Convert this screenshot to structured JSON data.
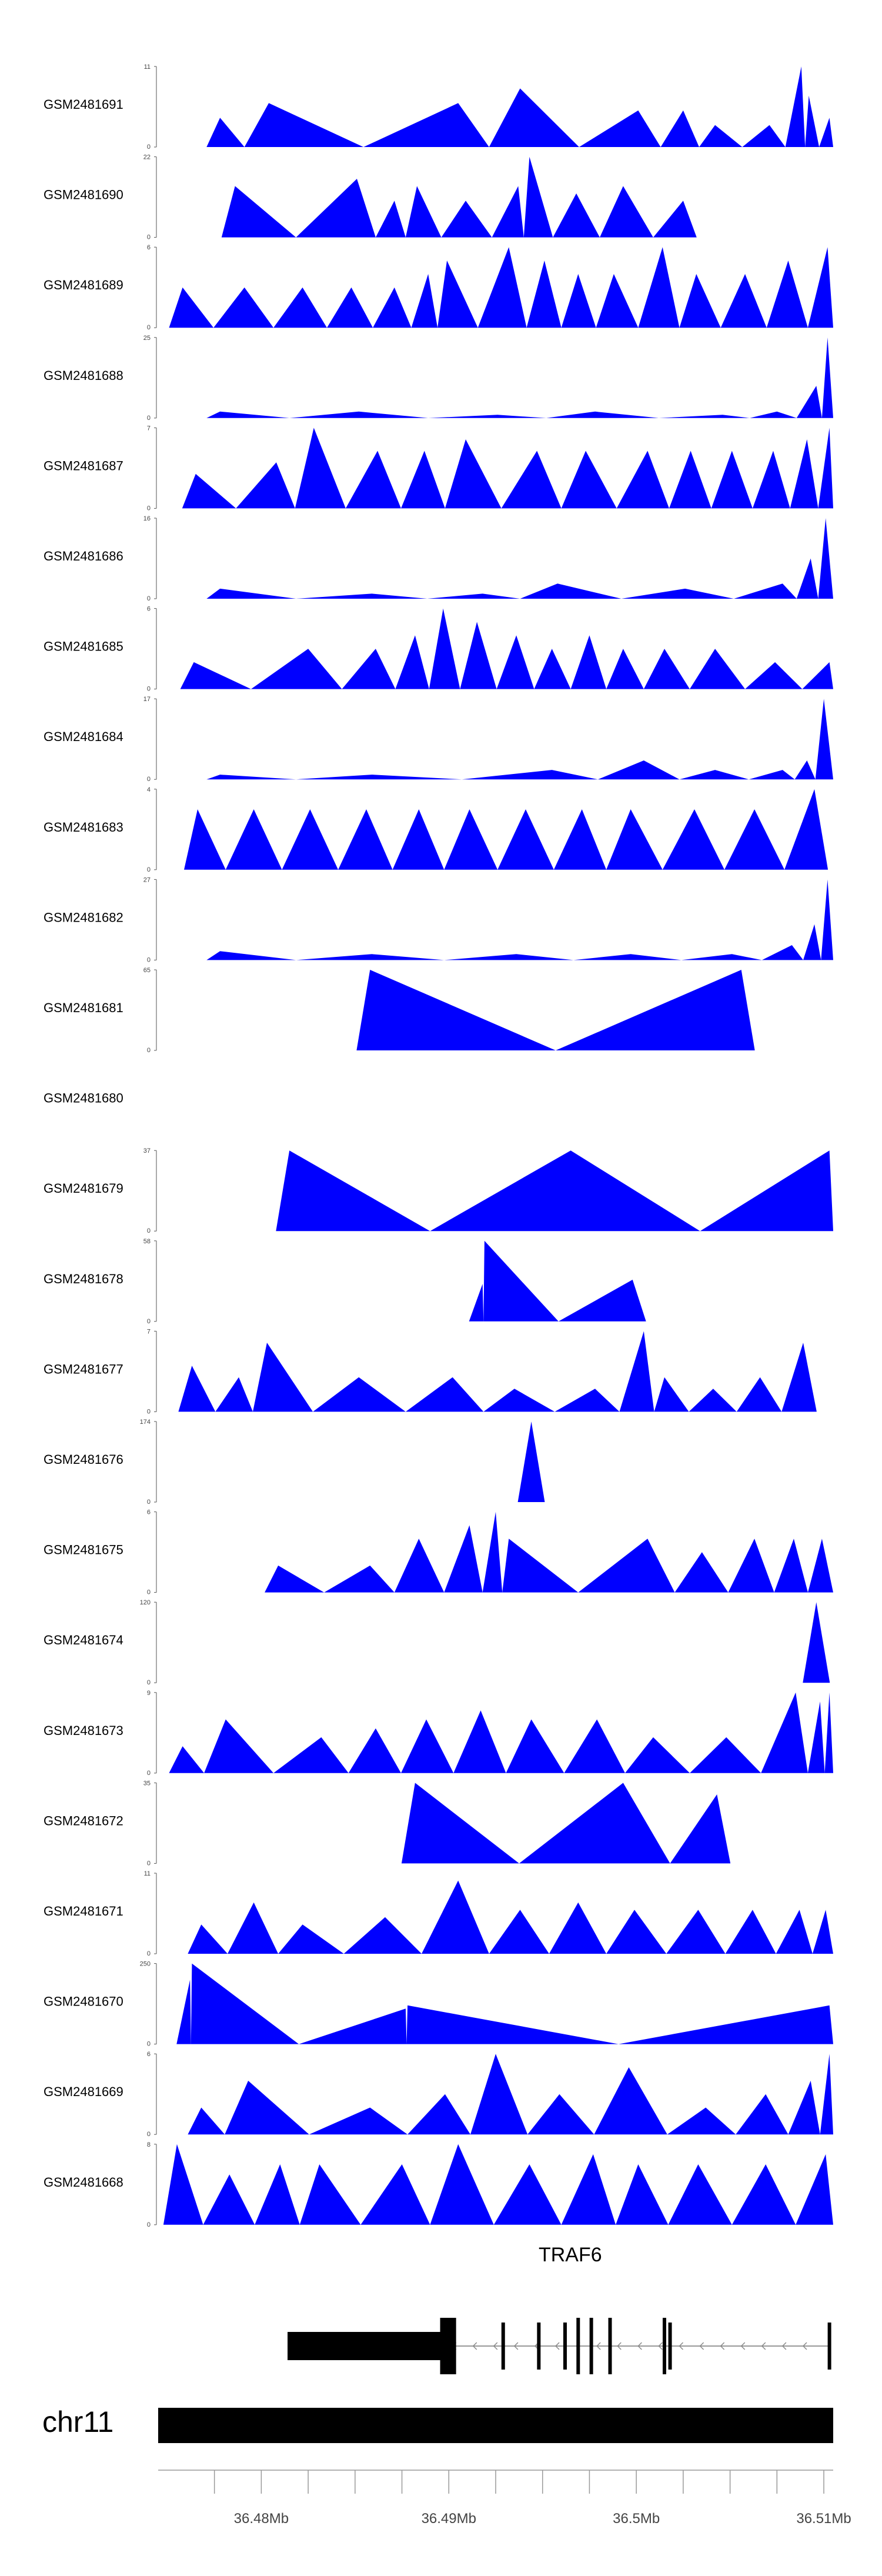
{
  "chart_data": {
    "type": "area",
    "title": "",
    "xlabel": "",
    "genome": {
      "chromosome": "chr11",
      "xlim": [
        36.4745,
        36.5105
      ],
      "ticks": [
        {
          "value": 36.48,
          "label": "36.48Mb"
        },
        {
          "value": 36.49,
          "label": "36.49Mb"
        },
        {
          "value": 36.5,
          "label": "36.5Mb"
        },
        {
          "value": 36.51,
          "label": "36.51Mb"
        }
      ]
    },
    "gene": {
      "name": "TRAF6",
      "start": 36.4814,
      "end": 36.5103,
      "thick_start": 36.4814,
      "thick_end": 36.4896,
      "exons": [
        36.4902,
        36.4929,
        36.4948,
        36.4962,
        36.4969,
        36.4976,
        36.4986,
        36.5015,
        36.5018,
        36.5103
      ]
    },
    "tracks": [
      {
        "name": "GSM2481691",
        "ymax": 11,
        "peaks": [
          [
            36.4778,
            4
          ],
          [
            36.4804,
            6
          ],
          [
            36.4905,
            6
          ],
          [
            36.4938,
            8
          ],
          [
            36.5001,
            5
          ],
          [
            36.5025,
            5
          ],
          [
            36.5042,
            3
          ],
          [
            36.5071,
            3
          ],
          [
            36.5088,
            11
          ],
          [
            36.5092,
            7
          ],
          [
            36.5103,
            4
          ]
        ]
      },
      {
        "name": "GSM2481690",
        "ymax": 22,
        "peaks": [
          [
            36.4786,
            14
          ],
          [
            36.4851,
            16
          ],
          [
            36.4871,
            10
          ],
          [
            36.4883,
            14
          ],
          [
            36.4909,
            10
          ],
          [
            36.4937,
            14
          ],
          [
            36.4943,
            22
          ],
          [
            36.4968,
            12
          ],
          [
            36.4993,
            14
          ],
          [
            36.5025,
            10
          ]
        ]
      },
      {
        "name": "GSM2481689",
        "ymax": 6,
        "peaks": [
          [
            36.4758,
            3
          ],
          [
            36.4791,
            3
          ],
          [
            36.4822,
            3
          ],
          [
            36.4848,
            3
          ],
          [
            36.4871,
            3
          ],
          [
            36.4889,
            4
          ],
          [
            36.4899,
            5
          ],
          [
            36.4932,
            6
          ],
          [
            36.4951,
            5
          ],
          [
            36.4969,
            4
          ],
          [
            36.4988,
            4
          ],
          [
            36.5014,
            6
          ],
          [
            36.5032,
            4
          ],
          [
            36.5058,
            4
          ],
          [
            36.5081,
            5
          ],
          [
            36.5102,
            6
          ]
        ]
      },
      {
        "name": "GSM2481688",
        "ymax": 25,
        "peaks": [
          [
            36.4778,
            2
          ],
          [
            36.4852,
            2
          ],
          [
            36.4926,
            1
          ],
          [
            36.4978,
            2
          ],
          [
            36.5046,
            1
          ],
          [
            36.5075,
            2
          ],
          [
            36.5096,
            10
          ],
          [
            36.5102,
            25
          ]
        ]
      },
      {
        "name": "GSM2481687",
        "ymax": 7,
        "peaks": [
          [
            36.4765,
            3
          ],
          [
            36.4808,
            4
          ],
          [
            36.4828,
            7
          ],
          [
            36.4862,
            5
          ],
          [
            36.4887,
            5
          ],
          [
            36.4909,
            6
          ],
          [
            36.4947,
            5
          ],
          [
            36.4973,
            5
          ],
          [
            36.5006,
            5
          ],
          [
            36.5029,
            5
          ],
          [
            36.5051,
            5
          ],
          [
            36.5073,
            5
          ],
          [
            36.5091,
            6
          ],
          [
            36.5103,
            7
          ]
        ]
      },
      {
        "name": "GSM2481686",
        "ymax": 16,
        "peaks": [
          [
            36.4778,
            2
          ],
          [
            36.4859,
            1
          ],
          [
            36.4918,
            1
          ],
          [
            36.4958,
            3
          ],
          [
            36.5026,
            2
          ],
          [
            36.5078,
            3
          ],
          [
            36.5093,
            8
          ],
          [
            36.5101,
            16
          ]
        ]
      },
      {
        "name": "GSM2481685",
        "ymax": 6,
        "peaks": [
          [
            36.4764,
            2
          ],
          [
            36.4825,
            3
          ],
          [
            36.4861,
            3
          ],
          [
            36.4882,
            4
          ],
          [
            36.4897,
            6
          ],
          [
            36.4915,
            5
          ],
          [
            36.4936,
            4
          ],
          [
            36.4955,
            3
          ],
          [
            36.4975,
            4
          ],
          [
            36.4993,
            3
          ],
          [
            36.5015,
            3
          ],
          [
            36.5042,
            3
          ],
          [
            36.5074,
            2
          ],
          [
            36.5103,
            2
          ]
        ]
      },
      {
        "name": "GSM2481684",
        "ymax": 17,
        "peaks": [
          [
            36.4778,
            1
          ],
          [
            36.4859,
            1
          ],
          [
            36.4955,
            2
          ],
          [
            36.5004,
            4
          ],
          [
            36.5042,
            2
          ],
          [
            36.5078,
            2
          ],
          [
            36.5091,
            4
          ],
          [
            36.51,
            17
          ]
        ]
      },
      {
        "name": "GSM2481683",
        "ymax": 4,
        "peaks": [
          [
            36.4766,
            3
          ],
          [
            36.4796,
            3
          ],
          [
            36.4826,
            3
          ],
          [
            36.4856,
            3
          ],
          [
            36.4884,
            3
          ],
          [
            36.4911,
            3
          ],
          [
            36.4941,
            3
          ],
          [
            36.4971,
            3
          ],
          [
            36.4997,
            3
          ],
          [
            36.5031,
            3
          ],
          [
            36.5063,
            3
          ],
          [
            36.5095,
            4
          ]
        ]
      },
      {
        "name": "GSM2481682",
        "ymax": 27,
        "peaks": [
          [
            36.4778,
            3
          ],
          [
            36.4859,
            2
          ],
          [
            36.4936,
            2
          ],
          [
            36.4997,
            2
          ],
          [
            36.5051,
            2
          ],
          [
            36.5083,
            5
          ],
          [
            36.5095,
            12
          ],
          [
            36.5102,
            27
          ]
        ]
      },
      {
        "name": "GSM2481681",
        "ymax": 65,
        "peaks": [
          [
            36.4858,
            65
          ],
          [
            36.5056,
            65
          ]
        ]
      },
      {
        "name": "GSM2481680",
        "ymax": null,
        "peaks": []
      },
      {
        "name": "GSM2481679",
        "ymax": 37,
        "peaks": [
          [
            36.4815,
            37
          ],
          [
            36.4965,
            37
          ],
          [
            36.5103,
            37
          ]
        ]
      },
      {
        "name": "GSM2481678",
        "ymax": 58,
        "peaks": [
          [
            36.4918,
            27
          ],
          [
            36.4919,
            58
          ],
          [
            36.4998,
            30
          ]
        ]
      },
      {
        "name": "GSM2481677",
        "ymax": 7,
        "peaks": [
          [
            36.4763,
            4
          ],
          [
            36.4788,
            3
          ],
          [
            36.4803,
            6
          ],
          [
            36.4852,
            3
          ],
          [
            36.4902,
            3
          ],
          [
            36.4935,
            2
          ],
          [
            36.4978,
            2
          ],
          [
            36.5004,
            7
          ],
          [
            36.5015,
            3
          ],
          [
            36.5041,
            2
          ],
          [
            36.5066,
            3
          ],
          [
            36.5089,
            6
          ]
        ]
      },
      {
        "name": "GSM2481676",
        "ymax": 174,
        "peaks": [
          [
            36.4944,
            174
          ]
        ]
      },
      {
        "name": "GSM2481675",
        "ymax": 6,
        "peaks": [
          [
            36.4809,
            2
          ],
          [
            36.4858,
            2
          ],
          [
            36.4884,
            4
          ],
          [
            36.4911,
            5
          ],
          [
            36.4925,
            6
          ],
          [
            36.4932,
            4
          ],
          [
            36.5006,
            4
          ],
          [
            36.5035,
            3
          ],
          [
            36.5063,
            4
          ],
          [
            36.5084,
            4
          ],
          [
            36.5099,
            4
          ]
        ]
      },
      {
        "name": "GSM2481674",
        "ymax": 120,
        "peaks": [
          [
            36.5096,
            120
          ]
        ]
      },
      {
        "name": "GSM2481673",
        "ymax": 9,
        "peaks": [
          [
            36.4758,
            3
          ],
          [
            36.4781,
            6
          ],
          [
            36.4832,
            4
          ],
          [
            36.4861,
            5
          ],
          [
            36.4888,
            6
          ],
          [
            36.4917,
            7
          ],
          [
            36.4944,
            6
          ],
          [
            36.4979,
            6
          ],
          [
            36.5009,
            4
          ],
          [
            36.5048,
            4
          ],
          [
            36.5085,
            9
          ],
          [
            36.5098,
            8
          ],
          [
            36.5103,
            9
          ]
        ]
      },
      {
        "name": "GSM2481672",
        "ymax": 35,
        "peaks": [
          [
            36.4882,
            35
          ],
          [
            36.4993,
            35
          ],
          [
            36.5043,
            30
          ]
        ]
      },
      {
        "name": "GSM2481671",
        "ymax": 11,
        "peaks": [
          [
            36.4768,
            4
          ],
          [
            36.4796,
            7
          ],
          [
            36.4822,
            4
          ],
          [
            36.4866,
            5
          ],
          [
            36.4905,
            10
          ],
          [
            36.4938,
            6
          ],
          [
            36.4969,
            7
          ],
          [
            36.4999,
            6
          ],
          [
            36.5033,
            6
          ],
          [
            36.5062,
            6
          ],
          [
            36.5087,
            6
          ],
          [
            36.5101,
            6
          ]
        ]
      },
      {
        "name": "GSM2481670",
        "ymax": 250,
        "peaks": [
          [
            36.4762,
            200
          ],
          [
            36.4763,
            250
          ],
          [
            36.4877,
            110
          ],
          [
            36.4878,
            120
          ],
          [
            36.5103,
            120
          ]
        ]
      },
      {
        "name": "GSM2481669",
        "ymax": 6,
        "peaks": [
          [
            36.4768,
            2
          ],
          [
            36.4793,
            4
          ],
          [
            36.4858,
            2
          ],
          [
            36.4898,
            3
          ],
          [
            36.4925,
            6
          ],
          [
            36.4959,
            3
          ],
          [
            36.4996,
            5
          ],
          [
            36.5037,
            2
          ],
          [
            36.5069,
            3
          ],
          [
            36.5093,
            4
          ],
          [
            36.5103,
            6
          ]
        ]
      },
      {
        "name": "GSM2481668",
        "ymax": 8,
        "peaks": [
          [
            36.4755,
            8
          ],
          [
            36.4783,
            5
          ],
          [
            36.481,
            6
          ],
          [
            36.4831,
            6
          ],
          [
            36.4875,
            6
          ],
          [
            36.4905,
            8
          ],
          [
            36.4943,
            6
          ],
          [
            36.4977,
            7
          ],
          [
            36.5001,
            6
          ],
          [
            36.5033,
            6
          ],
          [
            36.5069,
            6
          ],
          [
            36.5101,
            7
          ]
        ]
      }
    ]
  }
}
